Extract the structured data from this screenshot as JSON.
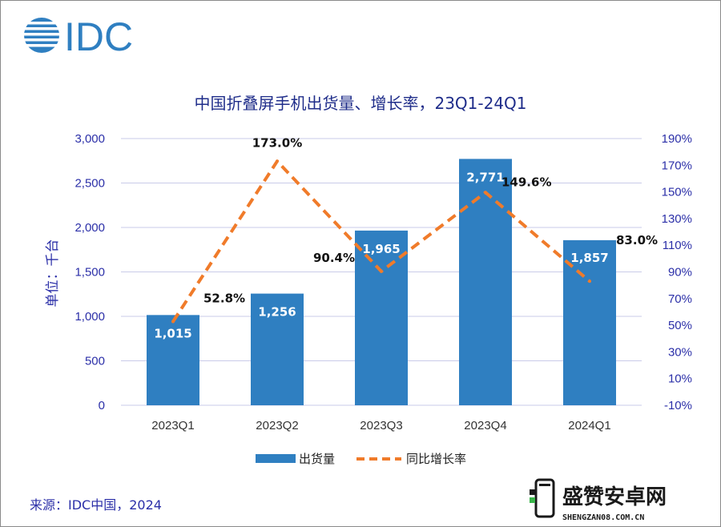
{
  "logo": {
    "text": "IDC"
  },
  "source": "来源：IDC中国，2024",
  "watermark": {
    "name": "盛赞安卓网",
    "url": "SHENGZAN08.COM.CN"
  },
  "chart_data": {
    "type": "bar",
    "title": "中国折叠屏手机出货量、增长率，23Q1-24Q1",
    "ylabel": "单位：千台",
    "categories": [
      "2023Q1",
      "2023Q2",
      "2023Q3",
      "2023Q4",
      "2024Q1"
    ],
    "y_left": {
      "ticks": [
        "0",
        "500",
        "1,000",
        "1,500",
        "2,000",
        "2,500",
        "3,000"
      ],
      "ylim": [
        0,
        3000
      ]
    },
    "y_right": {
      "ticks": [
        "-10%",
        "10%",
        "30%",
        "50%",
        "70%",
        "90%",
        "110%",
        "130%",
        "150%",
        "170%",
        "190%"
      ],
      "ylim": [
        -10,
        190
      ]
    },
    "grid": true,
    "legend_position": "bottom",
    "bar_color": "#2f7fc1",
    "line_color": "#f07b2a",
    "series": [
      {
        "name": "出货量",
        "kind": "bar",
        "axis": "left",
        "values": [
          1015,
          1256,
          1965,
          2771,
          1857
        ],
        "labels": [
          "1,015",
          "1,256",
          "1,965",
          "2,771",
          "1,857"
        ]
      },
      {
        "name": "同比增长率",
        "kind": "line",
        "style": "dashed",
        "axis": "right",
        "values": [
          52.8,
          173.0,
          90.4,
          149.6,
          83.0
        ],
        "labels": [
          "52.8%",
          "173.0%",
          "90.4%",
          "149.6%",
          "83.0%"
        ]
      }
    ]
  }
}
